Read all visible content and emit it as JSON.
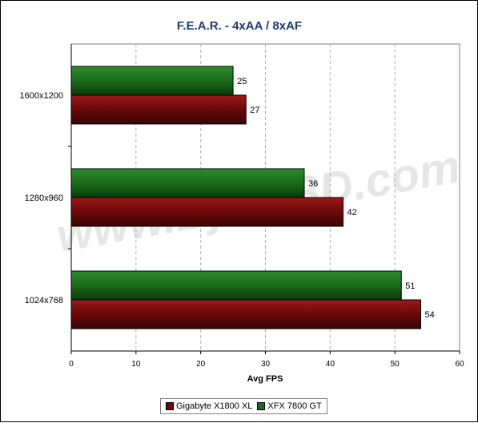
{
  "chart_data": {
    "type": "bar",
    "orientation": "horizontal",
    "title": "F.E.A.R. - 4xAA / 8xAF",
    "xlabel": "Avg FPS",
    "ylabel": "",
    "categories": [
      "1600x1200",
      "1280x960",
      "1024x768"
    ],
    "series": [
      {
        "name": "XFX 7800 GT",
        "values": [
          25,
          36,
          51
        ],
        "color": "#1a6b1a"
      },
      {
        "name": "Gigabyte X1800 XL",
        "values": [
          27,
          42,
          54
        ],
        "color": "#7a0a0a"
      }
    ],
    "xlim": [
      0,
      60
    ],
    "xticks": [
      0,
      10,
      20,
      30,
      40,
      50,
      60
    ],
    "grid": true,
    "legend_position": "bottom",
    "legend_order": [
      "Gigabyte X1800 XL",
      "XFX 7800 GT"
    ],
    "watermark": "www.Bjorn3D.com"
  }
}
